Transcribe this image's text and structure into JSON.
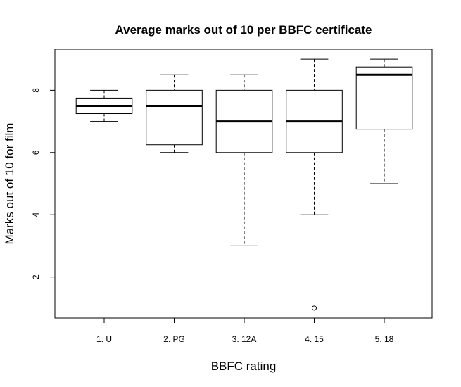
{
  "chart_data": {
    "type": "boxplot",
    "title": "Average marks out of 10 per BBFC certificate",
    "xlabel": "BBFC rating",
    "ylabel": "Marks out of 10 for film",
    "categories": [
      "1. U",
      "2. PG",
      "3. 12A",
      "4. 15",
      "5. 18"
    ],
    "boxes": [
      {
        "whisker_low": 7.0,
        "q1": 7.25,
        "median": 7.5,
        "q3": 7.75,
        "whisker_high": 8.0,
        "outliers": []
      },
      {
        "whisker_low": 6.0,
        "q1": 6.25,
        "median": 7.5,
        "q3": 8.0,
        "whisker_high": 8.5,
        "outliers": []
      },
      {
        "whisker_low": 3.0,
        "q1": 6.0,
        "median": 7.0,
        "q3": 8.0,
        "whisker_high": 8.5,
        "outliers": []
      },
      {
        "whisker_low": 4.0,
        "q1": 6.0,
        "median": 7.0,
        "q3": 8.0,
        "whisker_high": 9.0,
        "outliers": [
          1.0
        ]
      },
      {
        "whisker_low": 5.0,
        "q1": 6.75,
        "median": 8.5,
        "q3": 8.75,
        "whisker_high": 9.0,
        "outliers": []
      }
    ],
    "yticks": [
      "2",
      "4",
      "6",
      "8"
    ],
    "ylim": [
      0.68,
      9.32
    ],
    "grid": false,
    "legend": "none"
  }
}
